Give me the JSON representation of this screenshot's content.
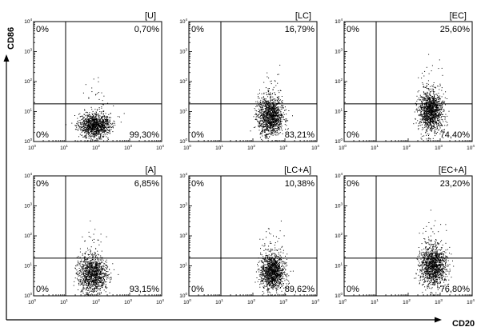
{
  "chart_data": {
    "type": "scatter",
    "xlabel": "CD20",
    "ylabel": "CD86",
    "x_scale": "log",
    "y_scale": "log",
    "xlim": [
      1,
      10000
    ],
    "ylim": [
      1,
      10000
    ],
    "tick_values": [
      1,
      10,
      100,
      1000,
      10000
    ],
    "tick_labels": {
      "base": [
        "10",
        "10",
        "10",
        "10",
        "10"
      ],
      "exponents": [
        "0",
        "1",
        "2",
        "3",
        "4"
      ]
    },
    "gate": {
      "x": 10,
      "y": 18
    },
    "grid": false,
    "panels": [
      {
        "label": "[U]",
        "quadrants": {
          "upper_left": "0%",
          "upper_right": "0,70%",
          "lower_left": "0%",
          "lower_right": "99,30%"
        },
        "population": {
          "x_center": 80,
          "x_spread": 0.24,
          "y_center": 3.5,
          "y_spread": 0.2,
          "count": 1200
        }
      },
      {
        "label": "[LC]",
        "quadrants": {
          "upper_left": "0%",
          "upper_right": "16,79%",
          "lower_left": "0%",
          "lower_right": "83,21%"
        },
        "population": {
          "x_center": 350,
          "x_spread": 0.19,
          "y_center": 7,
          "y_spread": 0.32,
          "count": 1300
        }
      },
      {
        "label": "[EC]",
        "quadrants": {
          "upper_left": "0%",
          "upper_right": "25,60%",
          "lower_left": "0%",
          "lower_right": "74,40%"
        },
        "population": {
          "x_center": 500,
          "x_spread": 0.18,
          "y_center": 10,
          "y_spread": 0.34,
          "count": 1300
        }
      },
      {
        "label": "[A]",
        "quadrants": {
          "upper_left": "0%",
          "upper_right": "6,85%",
          "lower_left": "0%",
          "lower_right": "93,15%"
        },
        "population": {
          "x_center": 70,
          "x_spread": 0.22,
          "y_center": 5,
          "y_spread": 0.3,
          "count": 1200
        }
      },
      {
        "label": "[LC+A]",
        "quadrants": {
          "upper_left": "0%",
          "upper_right": "10,38%",
          "lower_left": "0%",
          "lower_right": "89,62%"
        },
        "population": {
          "x_center": 400,
          "x_spread": 0.18,
          "y_center": 6.5,
          "y_spread": 0.3,
          "count": 1300
        }
      },
      {
        "label": "[EC+A]",
        "quadrants": {
          "upper_left": "0%",
          "upper_right": "23,20%",
          "lower_left": "0%",
          "lower_right": "76,80%"
        },
        "population": {
          "x_center": 600,
          "x_spread": 0.2,
          "y_center": 9.5,
          "y_spread": 0.33,
          "count": 1300
        }
      }
    ]
  }
}
